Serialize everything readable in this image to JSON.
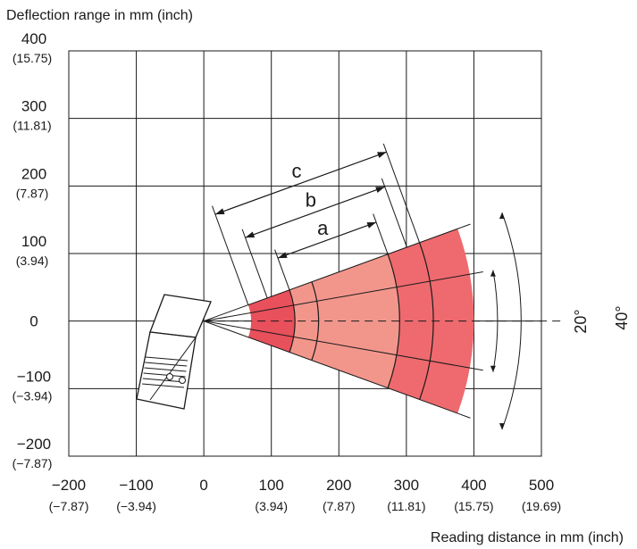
{
  "chart_data": {
    "type": "diagram",
    "title": "Deflection range in mm (inch)",
    "xlabel": "Reading distance in mm (inch)",
    "x_ticks": [
      {
        "value": -200,
        "label": "−200",
        "sub": "(−7.87)"
      },
      {
        "value": -100,
        "label": "−100",
        "sub": "(−3.94)"
      },
      {
        "value": 0,
        "label": "0",
        "sub": ""
      },
      {
        "value": 100,
        "label": "100",
        "sub": "(3.94)"
      },
      {
        "value": 200,
        "label": "200",
        "sub": "(7.87)"
      },
      {
        "value": 300,
        "label": "300",
        "sub": "(11.81)"
      },
      {
        "value": 400,
        "label": "400",
        "sub": "(15.75)"
      },
      {
        "value": 500,
        "label": "500",
        "sub": "(19.69)"
      }
    ],
    "y_ticks": [
      {
        "value": 400,
        "label": "400",
        "sub": "(15.75)"
      },
      {
        "value": 300,
        "label": "300",
        "sub": "(11.81)"
      },
      {
        "value": 200,
        "label": "200",
        "sub": "(7.87)"
      },
      {
        "value": 100,
        "label": "100",
        "sub": "(3.94)"
      },
      {
        "value": 0,
        "label": "0",
        "sub": ""
      },
      {
        "value": -100,
        "label": "−100",
        "sub": "(−3.94)"
      },
      {
        "value": -200,
        "label": "−200",
        "sub": "(−7.87)"
      }
    ],
    "xlim": [
      -200,
      500
    ],
    "ylim": [
      -200,
      400
    ],
    "grid": true,
    "angles": [
      "20°",
      "40°"
    ],
    "ranges": [
      {
        "name": "a",
        "start": 135,
        "end": 290
      },
      {
        "name": "b",
        "start": 100,
        "end": 320
      },
      {
        "name": "c",
        "start": 70,
        "end": 340
      }
    ],
    "colors": {
      "inner_band": "#e8505b",
      "middle_band": "#f2968c",
      "outer_band": "#ee6a6e",
      "grid": "#1a1a1a"
    }
  }
}
